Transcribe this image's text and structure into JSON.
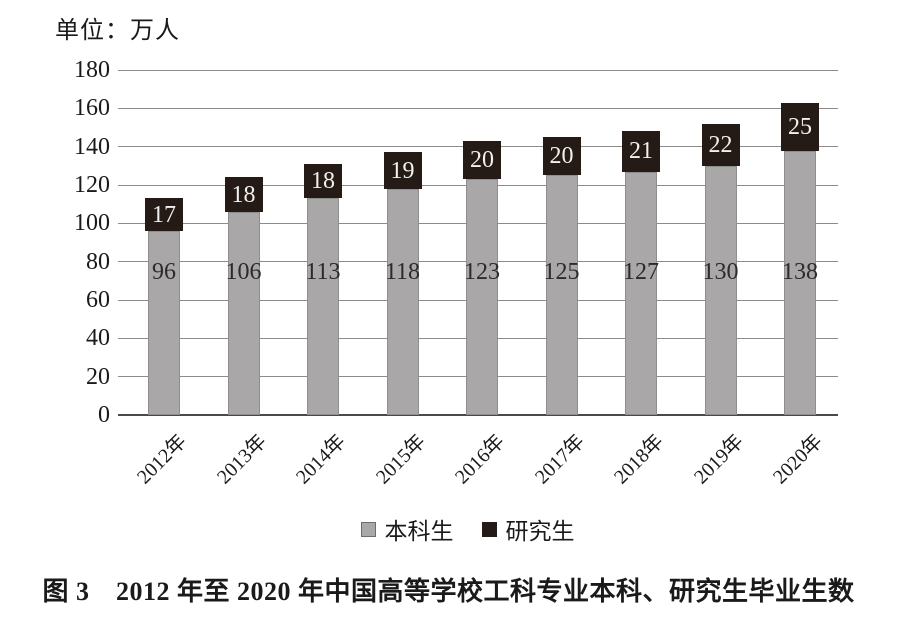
{
  "unit_label": "单位：万人",
  "caption": "图 3　2012 年至 2020 年中国高等学校工科专业本科、研究生毕业生数",
  "chart_data": {
    "type": "bar",
    "stacked": true,
    "title": "图 3　2012 年至 2020 年中国高等学校工科专业本科、研究生毕业生数",
    "unit": "单位：万人",
    "categories": [
      "2012年",
      "2013年",
      "2014年",
      "2015年",
      "2016年",
      "2017年",
      "2018年",
      "2019年",
      "2020年"
    ],
    "series": [
      {
        "name": "本科生",
        "id": "undergrad",
        "values": [
          96,
          106,
          113,
          118,
          123,
          125,
          127,
          130,
          138
        ],
        "color": "#a9a7a7",
        "label_color": "#2b2b2b"
      },
      {
        "name": "研究生",
        "id": "grad",
        "values": [
          17,
          18,
          18,
          19,
          20,
          20,
          21,
          22,
          25
        ],
        "color": "#241a16",
        "label_color": "#f3efec"
      }
    ],
    "ylim": [
      0,
      180
    ],
    "yticks": [
      0,
      20,
      40,
      60,
      80,
      100,
      120,
      140,
      160,
      180
    ],
    "xlabel": "",
    "ylabel": "",
    "grid": true,
    "grid_color": "#8c8b8b",
    "axis_color": "#4a4a4a",
    "legend_position": "bottom"
  }
}
